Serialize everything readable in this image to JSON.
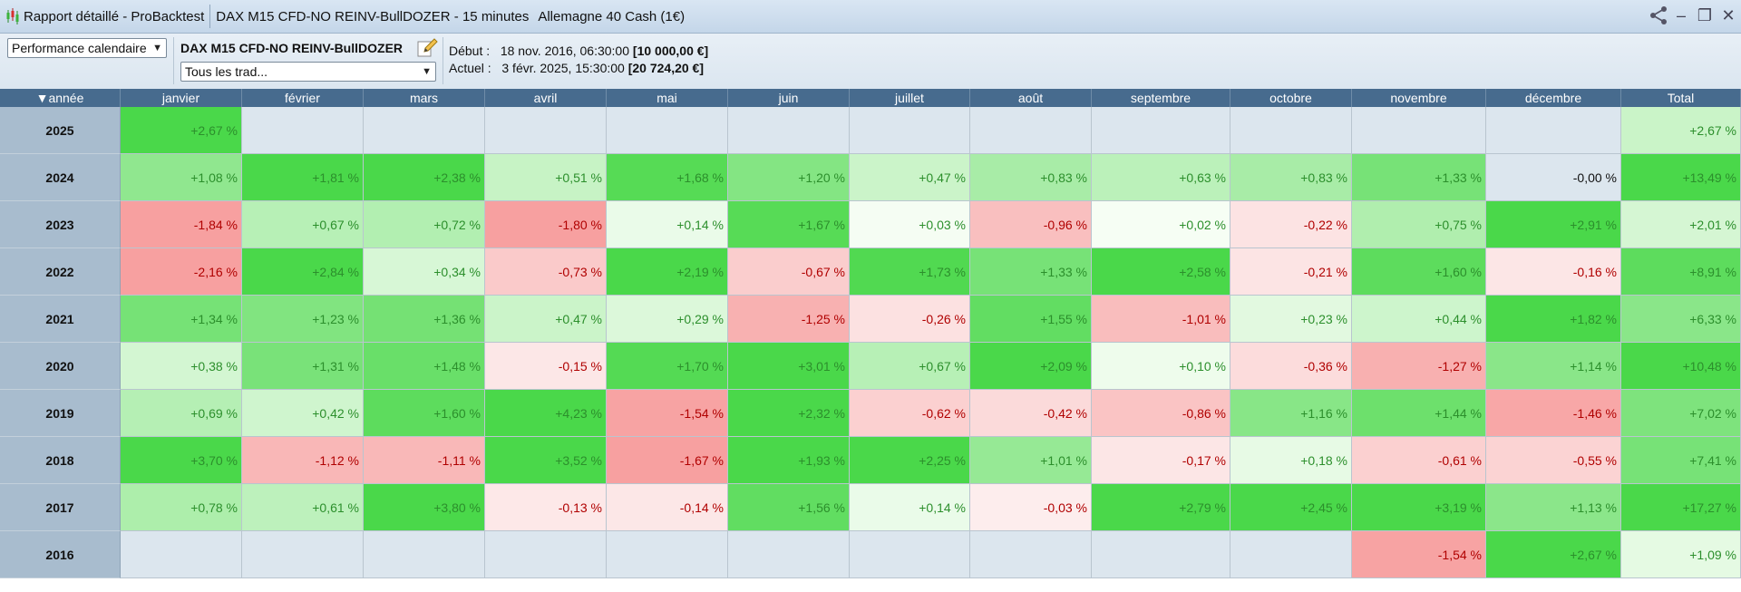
{
  "titlebar": {
    "report": "Rapport détaillé - ProBacktest",
    "strategy": "DAX M15 CFD-NO REINV-BullDOZER - 15 minutes",
    "instrument": "Allemagne 40 Cash (1€)"
  },
  "toolbar": {
    "view_select": "Performance calendaire",
    "strategy_name": "DAX M15 CFD-NO REINV-BullDOZER",
    "trades_select": "Tous les trad...",
    "start_label": "Début :",
    "start_value": "18 nov. 2016, 06:30:00",
    "start_capital": "[10 000,00 €]",
    "current_label": "Actuel :",
    "current_value": "3 févr. 2025, 15:30:00",
    "current_capital": "[20 724,20 €]"
  },
  "table": {
    "year_header": "année",
    "months": [
      "janvier",
      "février",
      "mars",
      "avril",
      "mai",
      "juin",
      "juillet",
      "août",
      "septembre",
      "octobre",
      "novembre",
      "décembre"
    ],
    "total_header": "Total",
    "rows": [
      {
        "year": "2025",
        "cells": [
          "+2,67 %",
          "",
          "",
          "",
          "",
          "",
          "",
          "",
          "",
          "",
          "",
          ""
        ],
        "total": "+2,67 %"
      },
      {
        "year": "2024",
        "cells": [
          "+1,08 %",
          "+1,81 %",
          "+2,38 %",
          "+0,51 %",
          "+1,68 %",
          "+1,20 %",
          "+0,47 %",
          "+0,83 %",
          "+0,63 %",
          "+0,83 %",
          "+1,33 %",
          "-0,00 %"
        ],
        "total": "+13,49 %"
      },
      {
        "year": "2023",
        "cells": [
          "-1,84 %",
          "+0,67 %",
          "+0,72 %",
          "-1,80 %",
          "+0,14 %",
          "+1,67 %",
          "+0,03 %",
          "-0,96 %",
          "+0,02 %",
          "-0,22 %",
          "+0,75 %",
          "+2,91 %"
        ],
        "total": "+2,01 %"
      },
      {
        "year": "2022",
        "cells": [
          "-2,16 %",
          "+2,84 %",
          "+0,34 %",
          "-0,73 %",
          "+2,19 %",
          "-0,67 %",
          "+1,73 %",
          "+1,33 %",
          "+2,58 %",
          "-0,21 %",
          "+1,60 %",
          "-0,16 %"
        ],
        "total": "+8,91 %"
      },
      {
        "year": "2021",
        "cells": [
          "+1,34 %",
          "+1,23 %",
          "+1,36 %",
          "+0,47 %",
          "+0,29 %",
          "-1,25 %",
          "-0,26 %",
          "+1,55 %",
          "-1,01 %",
          "+0,23 %",
          "+0,44 %",
          "+1,82 %"
        ],
        "total": "+6,33 %"
      },
      {
        "year": "2020",
        "cells": [
          "+0,38 %",
          "+1,31 %",
          "+1,48 %",
          "-0,15 %",
          "+1,70 %",
          "+3,01 %",
          "+0,67 %",
          "+2,09 %",
          "+0,10 %",
          "-0,36 %",
          "-1,27 %",
          "+1,14 %"
        ],
        "total": "+10,48 %"
      },
      {
        "year": "2019",
        "cells": [
          "+0,69 %",
          "+0,42 %",
          "+1,60 %",
          "+4,23 %",
          "-1,54 %",
          "+2,32 %",
          "-0,62 %",
          "-0,42 %",
          "-0,86 %",
          "+1,16 %",
          "+1,44 %",
          "-1,46 %"
        ],
        "total": "+7,02 %"
      },
      {
        "year": "2018",
        "cells": [
          "+3,70 %",
          "-1,12 %",
          "-1,11 %",
          "+3,52 %",
          "-1,67 %",
          "+1,93 %",
          "+2,25 %",
          "+1,01 %",
          "-0,17 %",
          "+0,18 %",
          "-0,61 %",
          "-0,55 %"
        ],
        "total": "+7,41 %"
      },
      {
        "year": "2017",
        "cells": [
          "+0,78 %",
          "+0,61 %",
          "+3,80 %",
          "-0,13 %",
          "-0,14 %",
          "+1,56 %",
          "+0,14 %",
          "-0,03 %",
          "+2,79 %",
          "+2,45 %",
          "+3,19 %",
          "+1,13 %"
        ],
        "total": "+17,27 %"
      },
      {
        "year": "2016",
        "cells": [
          "",
          "",
          "",
          "",
          "",
          "",
          "",
          "",
          "",
          "",
          "-1,54 %",
          "+2,67 %"
        ],
        "total": "+1,09 %"
      }
    ]
  },
  "colors": {
    "positive_text": "#2c8f2c",
    "negative_text": "#b00000",
    "empty_cell": "#dce6ee",
    "header_bg": "#476b8e",
    "year_bg": "#a8bcce"
  },
  "icons": {
    "app": "candlestick-chart-icon",
    "edit": "pencil-edit-icon",
    "share": "share-icon"
  }
}
